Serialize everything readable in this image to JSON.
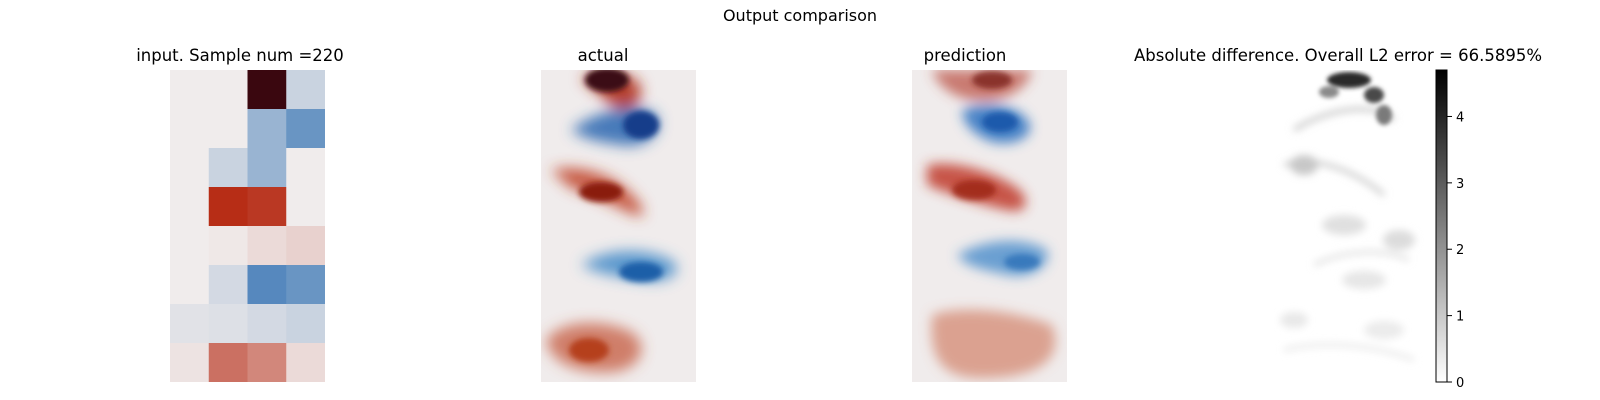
{
  "figure": {
    "suptitle": "Output comparison"
  },
  "panels": {
    "input": {
      "title": "input. Sample num =220"
    },
    "actual": {
      "title": "actual"
    },
    "prediction": {
      "title": "prediction"
    },
    "difference": {
      "title": "Absolute difference. Overall L2 error = 66.5895%"
    }
  },
  "chart_data": [
    {
      "type": "heatmap",
      "title": "input. Sample num =220",
      "colormap": "diverging-blue-white-red",
      "colors": {
        "negative": "#2f6fb2",
        "zero": "#f0ecec",
        "positive": "#b72d16",
        "extreme": "#3a070f"
      },
      "grid": {
        "rows": 8,
        "cols": 4
      },
      "values": [
        [
          0.0,
          0.0,
          1.0,
          -0.2
        ],
        [
          0.0,
          0.0,
          -0.45,
          -0.7
        ],
        [
          0.0,
          -0.2,
          -0.45,
          0.0
        ],
        [
          0.0,
          0.85,
          0.8,
          0.0
        ],
        [
          0.0,
          0.02,
          0.08,
          0.12
        ],
        [
          0.0,
          -0.15,
          -0.8,
          -0.7
        ],
        [
          -0.08,
          -0.1,
          -0.15,
          -0.2
        ],
        [
          0.04,
          0.55,
          0.45,
          0.08
        ]
      ]
    },
    {
      "type": "heatmap",
      "title": "actual",
      "colormap": "diverging-blue-white-red",
      "description_of_field": "alternating vortex street, 5 vortices"
    },
    {
      "type": "heatmap",
      "title": "prediction",
      "colormap": "diverging-blue-white-red"
    },
    {
      "type": "heatmap",
      "title": "Absolute difference. Overall L2 error = 66.5895%",
      "colormap": "grayscale",
      "colorbar": {
        "ticks": [
          0,
          1,
          2,
          3,
          4
        ],
        "range": [
          0,
          4.7
        ]
      }
    }
  ]
}
